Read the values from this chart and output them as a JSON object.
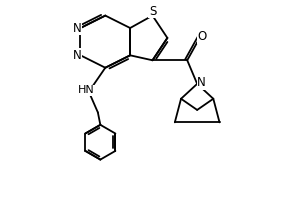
{
  "bg_color": "#ffffff",
  "line_color": "#000000",
  "line_width": 1.3,
  "font_size": 8.5,
  "xlim": [
    0.5,
    9.5
  ],
  "ylim": [
    0.5,
    8.5
  ]
}
